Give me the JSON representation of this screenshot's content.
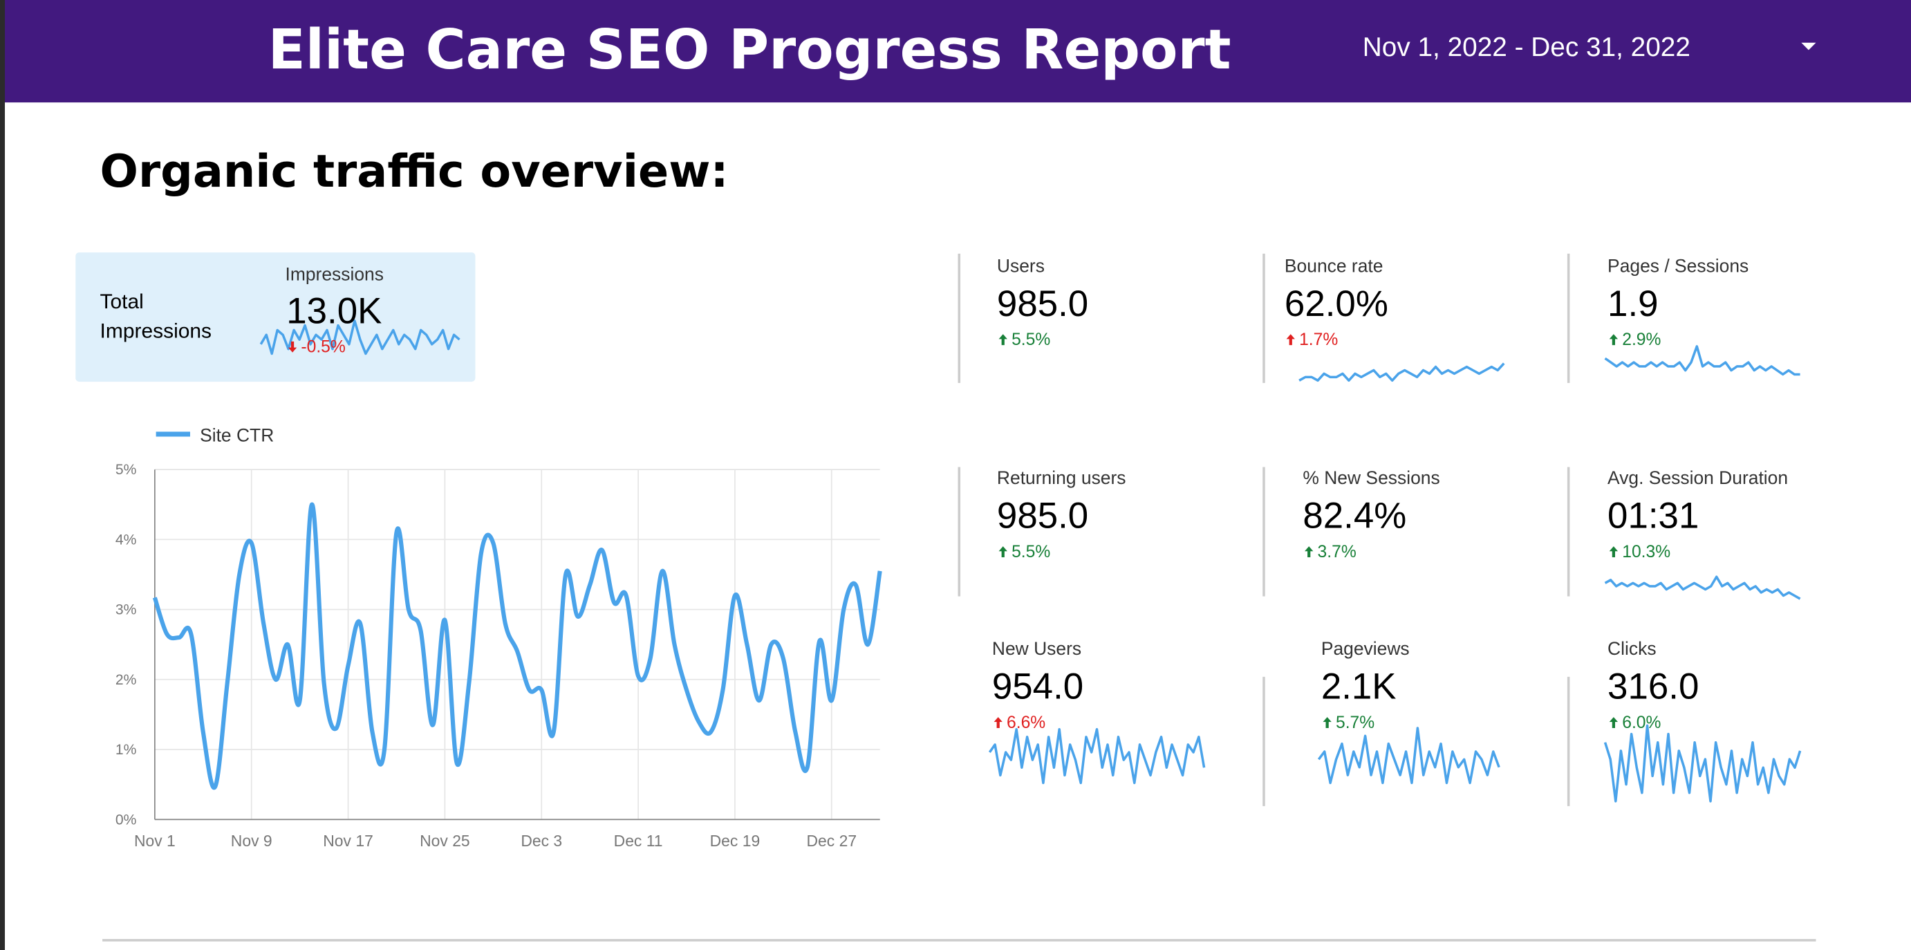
{
  "header": {
    "title": "Elite Care SEO Progress Report",
    "date_range": "Nov 1, 2022 - Dec 31, 2022"
  },
  "section_title": "Organic traffic overview:",
  "impressions_card": {
    "caption": [
      "Total",
      "Impressions"
    ],
    "label": "Impressions",
    "value": "13.0K",
    "delta": "-0.5%",
    "trend": "down",
    "delta_color": "#e02020",
    "spark": [
      4,
      6,
      2,
      7,
      6,
      3,
      7,
      5,
      8,
      4,
      6,
      5,
      7,
      3,
      8,
      6,
      4,
      9,
      5,
      2,
      4,
      6,
      3,
      5,
      7,
      4,
      6,
      5,
      3,
      7,
      6,
      4,
      5,
      7,
      3,
      6,
      5
    ]
  },
  "scorecards": [
    {
      "label": "Users",
      "value": "985.0",
      "delta": "5.5%",
      "trend": "up",
      "delta_color": "#188038",
      "spark": null
    },
    {
      "label": "Bounce rate",
      "value": "62.0%",
      "delta": "1.7%",
      "trend": "up",
      "delta_color": "#e02020",
      "spark": [
        3,
        4,
        4,
        3,
        5,
        4,
        4,
        5,
        3,
        5,
        4,
        5,
        6,
        4,
        5,
        3,
        5,
        6,
        5,
        4,
        6,
        5,
        7,
        5,
        6,
        5,
        6,
        7,
        6,
        5,
        6,
        7,
        6,
        8
      ]
    },
    {
      "label": "Pages / Sessions",
      "value": "1.9",
      "delta": "2.9%",
      "trend": "up",
      "delta_color": "#188038",
      "spark": [
        7,
        6,
        5,
        6,
        5,
        6,
        5,
        5,
        6,
        5,
        6,
        5,
        5,
        6,
        4,
        6,
        10,
        5,
        6,
        5,
        5,
        6,
        4,
        5,
        5,
        6,
        4,
        5,
        4,
        5,
        4,
        3,
        4,
        3,
        3
      ]
    },
    {
      "label": "Returning users",
      "value": "985.0",
      "delta": "5.5%",
      "trend": "up",
      "delta_color": "#188038",
      "spark": null
    },
    {
      "label": "% New Sessions",
      "value": "82.4%",
      "delta": "3.7%",
      "trend": "up",
      "delta_color": "#188038",
      "spark": null
    },
    {
      "label": "Avg. Session Duration",
      "value": "01:31",
      "delta": "10.3%",
      "trend": "up",
      "delta_color": "#188038",
      "spark": [
        7,
        8,
        6,
        7,
        6,
        7,
        6,
        7,
        6,
        6,
        7,
        5,
        6,
        7,
        5,
        6,
        7,
        6,
        5,
        6,
        9,
        6,
        7,
        5,
        6,
        7,
        5,
        6,
        4,
        5,
        4,
        5,
        3,
        4,
        3,
        2
      ]
    },
    {
      "label": "New Users",
      "value": "954.0",
      "delta": "6.6%",
      "trend": "up",
      "delta_color": "#e02020",
      "spark": [
        6,
        7,
        3,
        6,
        5,
        9,
        4,
        8,
        5,
        7,
        2,
        8,
        4,
        9,
        3,
        7,
        5,
        2,
        8,
        6,
        9,
        4,
        7,
        3,
        8,
        5,
        6,
        2,
        7,
        5,
        3,
        6,
        8,
        4,
        7,
        5,
        3,
        7,
        6,
        8,
        4
      ]
    },
    {
      "label": "Pageviews",
      "value": "2.1K",
      "delta": "5.7%",
      "trend": "up",
      "delta_color": "#188038",
      "spark": [
        5,
        6,
        2,
        5,
        7,
        3,
        6,
        4,
        8,
        3,
        6,
        2,
        7,
        5,
        3,
        6,
        2,
        9,
        3,
        6,
        4,
        7,
        2,
        6,
        4,
        5,
        2,
        6,
        5,
        3,
        6,
        4
      ]
    },
    {
      "label": "Clicks",
      "value": "316.0",
      "delta": "6.0%",
      "trend": "up",
      "delta_color": "#188038",
      "spark": [
        8,
        6,
        1,
        7,
        3,
        9,
        5,
        2,
        10,
        4,
        8,
        3,
        9,
        2,
        7,
        5,
        2,
        8,
        4,
        6,
        1,
        8,
        5,
        3,
        7,
        2,
        6,
        4,
        8,
        3,
        5,
        2,
        6,
        4,
        3,
        6,
        5,
        7
      ]
    }
  ],
  "chart_data": {
    "type": "line",
    "categories": [
      "Nov 1",
      null,
      null,
      null,
      null,
      null,
      null,
      null,
      "Nov 9",
      null,
      null,
      null,
      null,
      null,
      null,
      null,
      "Nov 17",
      null,
      null,
      null,
      null,
      null,
      null,
      null,
      "Nov 25",
      null,
      null,
      null,
      null,
      null,
      null,
      null,
      "Dec 3",
      null,
      null,
      null,
      null,
      null,
      null,
      null,
      "Dec 11",
      null,
      null,
      null,
      null,
      null,
      null,
      null,
      "Dec 19",
      null,
      null,
      null,
      null,
      null,
      null,
      null,
      "Dec 27",
      null,
      null,
      null,
      null
    ],
    "series": [
      {
        "name": "Site CTR",
        "color": "#4aa3ea",
        "values": [
          3.17,
          2.65,
          2.6,
          2.65,
          1.25,
          0.47,
          1.95,
          3.5,
          3.95,
          2.8,
          2.0,
          2.5,
          1.7,
          4.5,
          1.95,
          1.3,
          2.2,
          2.8,
          1.25,
          1.0,
          4.1,
          3.0,
          2.7,
          1.35,
          2.85,
          0.8,
          1.95,
          3.8,
          3.95,
          2.8,
          2.4,
          1.85,
          1.85,
          1.25,
          3.5,
          2.9,
          3.35,
          3.85,
          3.1,
          3.2,
          2.05,
          2.3,
          3.55,
          2.5,
          1.85,
          1.4,
          1.25,
          1.85,
          3.2,
          2.5,
          1.7,
          2.5,
          2.3,
          1.25,
          0.75,
          2.55,
          1.7,
          3.0,
          3.35,
          2.5,
          3.55
        ]
      }
    ],
    "ylim": [
      0,
      5
    ],
    "yticks": [
      {
        "value": 0,
        "label": "0%"
      },
      {
        "value": 1,
        "label": "1%"
      },
      {
        "value": 2,
        "label": "2%"
      },
      {
        "value": 3,
        "label": "3%"
      },
      {
        "value": 4,
        "label": "4%"
      },
      {
        "value": 5,
        "label": "5%"
      }
    ],
    "grid": true,
    "legend": "top-left"
  }
}
